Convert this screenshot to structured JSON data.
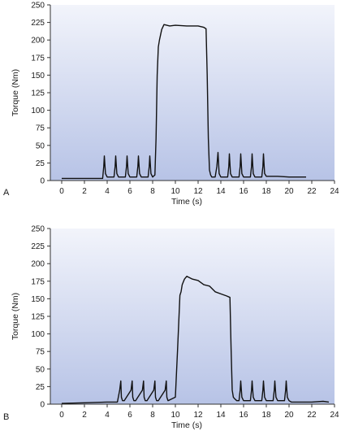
{
  "colors": {
    "plot_bg_top": "#f2f4fb",
    "plot_bg_bottom": "#b7c3e6",
    "line": "#111111",
    "axis": "#333333"
  },
  "chart_data": [
    {
      "type": "line",
      "panel_label": "A",
      "xlabel": "Time (s)",
      "ylabel": "Torque (Nm)",
      "xlim": [
        -1,
        24
      ],
      "ylim": [
        0,
        250
      ],
      "xticks": [
        "0",
        "2",
        "4",
        "6",
        "8",
        "10",
        "12",
        "14",
        "16",
        "18",
        "20",
        "22",
        "24"
      ],
      "yticks": [
        "0",
        "25",
        "50",
        "75",
        "100",
        "125",
        "150",
        "175",
        "200",
        "225",
        "250"
      ],
      "grid": false,
      "series": [
        {
          "x": [
            0,
            3,
            3.6,
            3.7,
            3.75,
            3.85,
            4.0,
            4.6,
            4.7,
            4.75,
            4.85,
            5.0,
            5.6,
            5.7,
            5.75,
            5.85,
            6.0,
            6.6,
            6.7,
            6.75,
            6.85,
            7.0,
            7.6,
            7.7,
            7.75,
            7.85,
            8.0,
            8.2,
            8.3,
            8.4,
            8.5,
            8.6,
            8.8,
            9.0,
            9.5,
            10,
            11,
            12,
            12.5,
            12.7,
            12.8,
            12.9,
            13.0,
            13.1,
            13.2,
            13.5,
            13.65,
            13.75,
            13.85,
            14.0,
            14.6,
            14.7,
            14.75,
            14.85,
            15.0,
            15.6,
            15.7,
            15.75,
            15.85,
            16.0,
            16.6,
            16.7,
            16.75,
            16.85,
            17.0,
            17.6,
            17.7,
            17.75,
            17.85,
            18.0,
            19,
            20,
            21.5
          ],
          "y": [
            3,
            3,
            3,
            20,
            35,
            10,
            5,
            5,
            20,
            35,
            10,
            5,
            5,
            20,
            35,
            10,
            5,
            5,
            20,
            35,
            10,
            5,
            5,
            20,
            35,
            10,
            5,
            8,
            60,
            150,
            190,
            200,
            215,
            222,
            220,
            221,
            220,
            220,
            218,
            216,
            150,
            60,
            15,
            8,
            5,
            5,
            20,
            40,
            10,
            5,
            5,
            20,
            38,
            10,
            5,
            5,
            20,
            38,
            10,
            5,
            5,
            20,
            38,
            10,
            5,
            5,
            20,
            38,
            10,
            6,
            6,
            5,
            5
          ]
        }
      ]
    },
    {
      "type": "line",
      "panel_label": "B",
      "xlabel": "Time (s)",
      "ylabel": "Torque (Nm)",
      "xlim": [
        -1,
        24
      ],
      "ylim": [
        0,
        250
      ],
      "xticks": [
        "0",
        "2",
        "4",
        "6",
        "8",
        "10",
        "12",
        "14",
        "16",
        "18",
        "20",
        "22",
        "24"
      ],
      "yticks": [
        "0",
        "25",
        "50",
        "75",
        "100",
        "125",
        "150",
        "175",
        "200",
        "225",
        "250"
      ],
      "grid": false,
      "series": [
        {
          "x": [
            0,
            2,
            4,
            4.9,
            5.1,
            5.2,
            5.25,
            5.35,
            5.5,
            6.1,
            6.2,
            6.25,
            6.35,
            6.5,
            7.1,
            7.2,
            7.25,
            7.35,
            7.5,
            8.1,
            8.2,
            8.25,
            8.35,
            8.5,
            9.1,
            9.2,
            9.25,
            9.35,
            9.5,
            10.0,
            10.2,
            10.4,
            10.5,
            10.6,
            10.8,
            11.0,
            11.5,
            12.0,
            12.5,
            13.0,
            13.5,
            14.0,
            14.5,
            14.8,
            14.9,
            15.0,
            15.1,
            15.2,
            15.4,
            15.6,
            15.7,
            15.75,
            15.85,
            16.0,
            16.6,
            16.7,
            16.75,
            16.85,
            17.0,
            17.6,
            17.7,
            17.75,
            17.85,
            18.0,
            18.6,
            18.7,
            18.75,
            18.85,
            19.0,
            19.6,
            19.7,
            19.75,
            19.85,
            20.0,
            20.2,
            21,
            22,
            23,
            23.5
          ],
          "y": [
            1,
            2,
            3,
            3,
            20,
            33,
            10,
            5,
            5,
            20,
            33,
            10,
            5,
            5,
            20,
            33,
            10,
            5,
            5,
            20,
            33,
            10,
            5,
            5,
            20,
            33,
            10,
            5,
            6,
            10,
            80,
            155,
            160,
            170,
            178,
            182,
            178,
            176,
            170,
            168,
            160,
            157,
            154,
            152,
            80,
            20,
            10,
            8,
            5,
            5,
            20,
            33,
            10,
            5,
            5,
            20,
            33,
            10,
            5,
            5,
            20,
            33,
            10,
            5,
            5,
            20,
            33,
            10,
            5,
            5,
            20,
            33,
            10,
            5,
            3,
            3,
            3,
            4,
            3
          ]
        }
      ]
    }
  ]
}
